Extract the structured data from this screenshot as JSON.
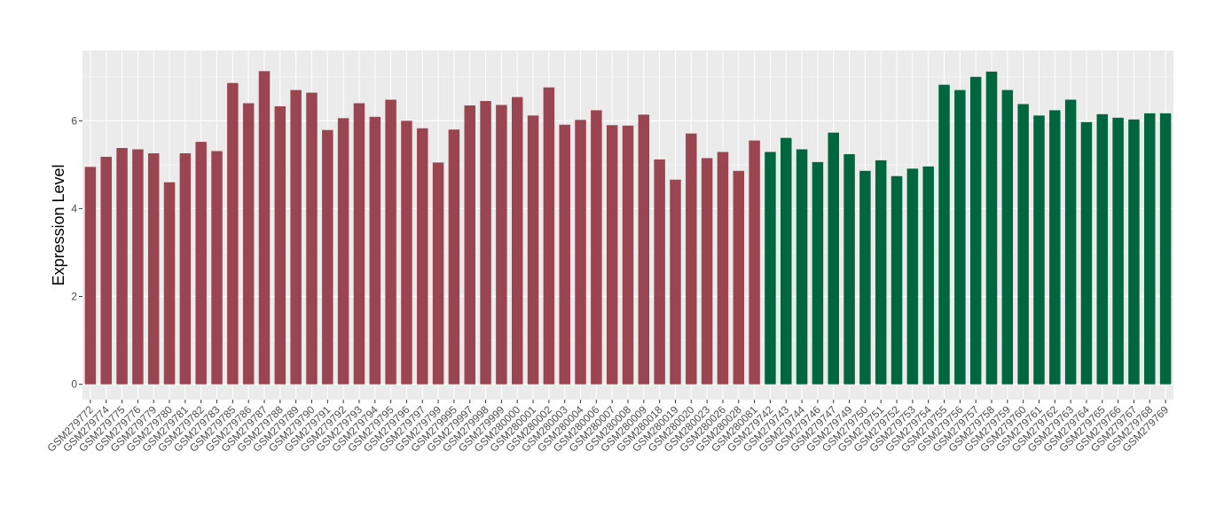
{
  "chart_data": {
    "type": "bar",
    "ylabel": "Expression Level",
    "xlabel": "",
    "ylim": [
      -0.35,
      7.6
    ],
    "yticks": [
      0,
      2,
      4,
      6
    ],
    "grid": true,
    "background": "#ebebeb",
    "categories": [
      "GSM279772",
      "GSM279774",
      "GSM279775",
      "GSM279776",
      "GSM279779",
      "GSM279780",
      "GSM279781",
      "GSM279782",
      "GSM279783",
      "GSM279785",
      "GSM279786",
      "GSM279787",
      "GSM279788",
      "GSM279789",
      "GSM279790",
      "GSM279791",
      "GSM279792",
      "GSM279793",
      "GSM279794",
      "GSM279795",
      "GSM279796",
      "GSM279797",
      "GSM279799",
      "GSM279995",
      "GSM279997",
      "GSM279998",
      "GSM279999",
      "GSM280000",
      "GSM280001",
      "GSM280002",
      "GSM280003",
      "GSM280004",
      "GSM280006",
      "GSM280007",
      "GSM280008",
      "GSM280009",
      "GSM280018",
      "GSM280019",
      "GSM280020",
      "GSM280023",
      "GSM280026",
      "GSM280028",
      "GSM280081",
      "GSM279742",
      "GSM279743",
      "GSM279744",
      "GSM279746",
      "GSM279747",
      "GSM279749",
      "GSM279750",
      "GSM279751",
      "GSM279752",
      "GSM279753",
      "GSM279754",
      "GSM279755",
      "GSM279756",
      "GSM279757",
      "GSM279758",
      "GSM279759",
      "GSM279760",
      "GSM279761",
      "GSM279762",
      "GSM279763",
      "GSM279764",
      "GSM279765",
      "GSM279766",
      "GSM279767",
      "GSM279768",
      "GSM279769"
    ],
    "values": [
      4.95,
      5.18,
      5.38,
      5.35,
      5.26,
      4.6,
      5.26,
      5.52,
      5.31,
      6.86,
      6.4,
      7.13,
      6.33,
      6.7,
      6.64,
      5.79,
      6.06,
      6.4,
      6.09,
      6.48,
      6.0,
      5.83,
      5.05,
      5.8,
      6.35,
      6.45,
      6.36,
      6.54,
      6.12,
      6.76,
      5.91,
      6.02,
      6.24,
      5.9,
      5.89,
      6.14,
      5.12,
      4.66,
      5.71,
      5.15,
      5.29,
      4.86,
      5.55,
      5.29,
      5.61,
      5.35,
      5.06,
      5.73,
      5.24,
      4.86,
      5.1,
      4.74,
      4.91,
      4.96,
      6.82,
      6.7,
      7.0,
      7.12,
      6.7,
      6.38,
      6.12,
      6.24,
      6.48,
      5.97,
      6.15,
      6.07,
      6.03,
      6.17,
      6.17
    ],
    "group_split_index": 43,
    "colors": {
      "group1": "#9b4550",
      "group2": "#00663f"
    }
  }
}
